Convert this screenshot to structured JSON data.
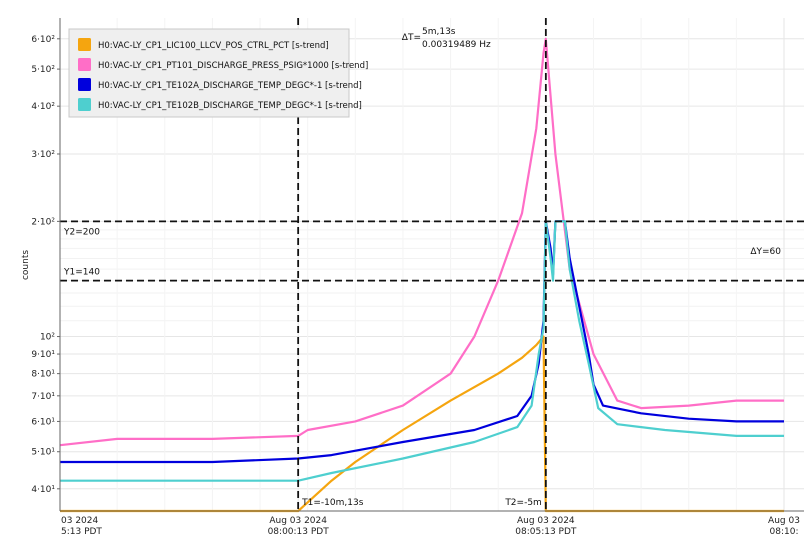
{
  "chart_data": {
    "type": "line",
    "ylabel": "counts",
    "yscale": "log",
    "ylim": [
      35,
      680
    ],
    "grid": true,
    "legend_position": "top-left",
    "x_ticks": [
      {
        "t": -15.2,
        "line1": "03 2024",
        "line2": "5:13 PDT"
      },
      {
        "t": -10.2,
        "line1": "Aug 03 2024",
        "line2": "08:00:13 PDT"
      },
      {
        "t": -5.0,
        "line1": "Aug 03 2024",
        "line2": "08:05:13 PDT"
      },
      {
        "t": 0.0,
        "line1": "Aug 03",
        "line2": "08:10:"
      }
    ],
    "y_ticks": [
      {
        "v": 40,
        "label": "4·10¹"
      },
      {
        "v": 50,
        "label": "5·10¹"
      },
      {
        "v": 60,
        "label": "6·10¹"
      },
      {
        "v": 70,
        "label": "7·10¹"
      },
      {
        "v": 80,
        "label": "8·10¹"
      },
      {
        "v": 90,
        "label": "9·10¹"
      },
      {
        "v": 100,
        "label": "10²"
      },
      {
        "v": 200,
        "label": "2·10²"
      },
      {
        "v": 300,
        "label": "3·10²"
      },
      {
        "v": 400,
        "label": "4·10²"
      },
      {
        "v": 500,
        "label": "5·10²"
      },
      {
        "v": 600,
        "label": "6·10²"
      }
    ],
    "cursors": {
      "T1": {
        "t": -10.2,
        "label": "T1=-10m,13s"
      },
      "T2": {
        "t": -5.0,
        "label": "T2=-5m"
      },
      "Y1": {
        "v": 140,
        "label": "Y1=140"
      },
      "Y2": {
        "v": 200,
        "label": "Y2=200"
      },
      "delta_t": {
        "label": "ΔT=",
        "value": "5m,13s",
        "freq": "0.00319489 Hz"
      },
      "delta_y": {
        "label": "ΔY=60"
      }
    },
    "series": [
      {
        "name": "H0:VAC-LY_CP1_LIC100_LLCV_POS_CTRL_PCT [s-trend]",
        "color": "#f5a50f",
        "points": [
          [
            -15.2,
            35
          ],
          [
            -10.2,
            35
          ],
          [
            -9.5,
            42
          ],
          [
            -9.0,
            47
          ],
          [
            -8.0,
            57
          ],
          [
            -7.0,
            68
          ],
          [
            -6.0,
            80
          ],
          [
            -5.5,
            88
          ],
          [
            -5.2,
            95
          ],
          [
            -5.05,
            100
          ],
          [
            -5.0,
            35
          ],
          [
            0.0,
            35
          ]
        ]
      },
      {
        "name": "H0:VAC-LY_CP1_PT101_DISCHARGE_PRESS_PSIG*1000 [s-trend]",
        "color": "#ff6ec7",
        "points": [
          [
            -15.2,
            52
          ],
          [
            -14.0,
            54
          ],
          [
            -12.0,
            54
          ],
          [
            -10.2,
            55
          ],
          [
            -10.0,
            57
          ],
          [
            -9.0,
            60
          ],
          [
            -8.0,
            66
          ],
          [
            -7.0,
            80
          ],
          [
            -6.5,
            100
          ],
          [
            -6.0,
            140
          ],
          [
            -5.5,
            210
          ],
          [
            -5.2,
            350
          ],
          [
            -5.05,
            550
          ],
          [
            -5.0,
            600
          ],
          [
            -4.8,
            300
          ],
          [
            -4.5,
            150
          ],
          [
            -4.0,
            90
          ],
          [
            -3.5,
            68
          ],
          [
            -3.0,
            65
          ],
          [
            -2.0,
            66
          ],
          [
            -1.0,
            68
          ],
          [
            0.0,
            68
          ]
        ]
      },
      {
        "name": "H0:VAC-LY_CP1_TE102A_DISCHARGE_TEMP_DEGC*-1 [s-trend]",
        "color": "#0000dd",
        "points": [
          [
            -15.2,
            47
          ],
          [
            -12.0,
            47
          ],
          [
            -10.2,
            48
          ],
          [
            -9.5,
            49
          ],
          [
            -8.0,
            53
          ],
          [
            -6.5,
            57
          ],
          [
            -5.6,
            62
          ],
          [
            -5.3,
            70
          ],
          [
            -5.15,
            85
          ],
          [
            -5.05,
            110
          ],
          [
            -5.0,
            200
          ],
          [
            -4.9,
            170
          ],
          [
            -4.85,
            145
          ],
          [
            -4.8,
            200
          ],
          [
            -4.6,
            200
          ],
          [
            -4.5,
            160
          ],
          [
            -4.3,
            120
          ],
          [
            -4.1,
            90
          ],
          [
            -4.0,
            75
          ],
          [
            -3.8,
            66
          ],
          [
            -3.0,
            63
          ],
          [
            -2.0,
            61
          ],
          [
            -1.0,
            60
          ],
          [
            0.0,
            60
          ]
        ]
      },
      {
        "name": "H0:VAC-LY_CP1_TE102B_DISCHARGE_TEMP_DEGC*-1 [s-trend]",
        "color": "#4ecfcf",
        "points": [
          [
            -15.2,
            42
          ],
          [
            -12.0,
            42
          ],
          [
            -10.2,
            42
          ],
          [
            -9.5,
            44
          ],
          [
            -8.0,
            48
          ],
          [
            -6.5,
            53
          ],
          [
            -5.6,
            58
          ],
          [
            -5.3,
            66
          ],
          [
            -5.15,
            90
          ],
          [
            -5.05,
            105
          ],
          [
            -5.0,
            200
          ],
          [
            -4.9,
            160
          ],
          [
            -4.85,
            140
          ],
          [
            -4.8,
            200
          ],
          [
            -4.6,
            200
          ],
          [
            -4.5,
            150
          ],
          [
            -4.3,
            110
          ],
          [
            -4.1,
            85
          ],
          [
            -3.9,
            65
          ],
          [
            -3.5,
            59
          ],
          [
            -2.5,
            57
          ],
          [
            -1.0,
            55
          ],
          [
            0.0,
            55
          ]
        ]
      }
    ]
  }
}
